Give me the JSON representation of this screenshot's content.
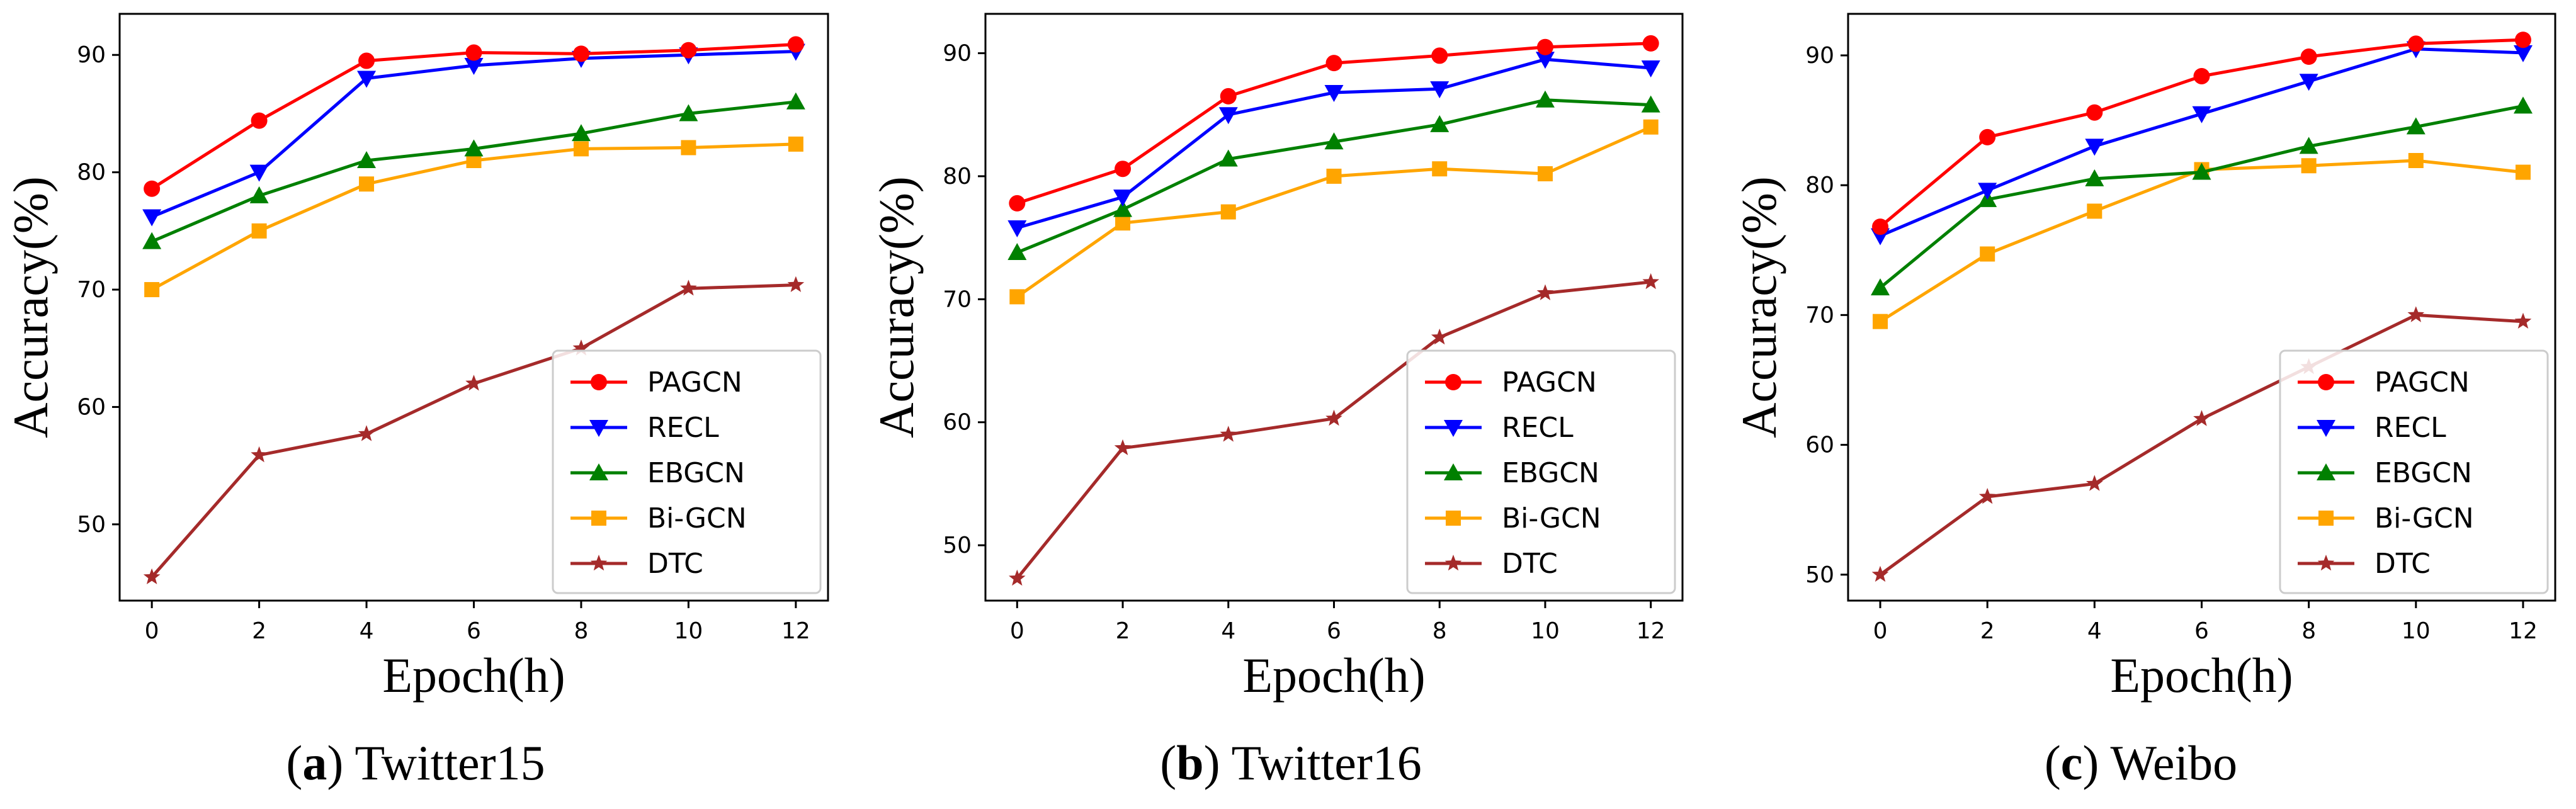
{
  "legend_series": [
    "PAGCN",
    "RECL",
    "EBGCN",
    "Bi-GCN",
    "DTC"
  ],
  "series_style": {
    "PAGCN": {
      "color": "#ff0000",
      "marker": "circle"
    },
    "RECL": {
      "color": "#0000ff",
      "marker": "triangle-down"
    },
    "EBGCN": {
      "color": "#008000",
      "marker": "triangle-up"
    },
    "Bi-GCN": {
      "color": "#ffa500",
      "marker": "square"
    },
    "DTC": {
      "color": "#a52a2a",
      "marker": "star"
    }
  },
  "chart_data": [
    {
      "type": "line",
      "caption_letter": "a",
      "caption_text": " Twitter15",
      "xlabel": "Epoch(h)",
      "ylabel": "Accuracy(%)",
      "x": [
        0,
        2,
        4,
        6,
        8,
        10,
        12
      ],
      "xticks": [
        "0",
        "2",
        "4",
        "6",
        "8",
        "10",
        "12"
      ],
      "yticks": [
        50,
        60,
        70,
        80,
        90
      ],
      "xlim": [
        -0.6,
        12.6
      ],
      "ylim": [
        43.5,
        93.5
      ],
      "legend_position": "lower-right",
      "series": [
        {
          "name": "PAGCN",
          "values": [
            78.6,
            84.4,
            89.5,
            90.2,
            90.1,
            90.4,
            90.9
          ]
        },
        {
          "name": "RECL",
          "values": [
            76.2,
            80.0,
            88.0,
            89.1,
            89.7,
            90.0,
            90.3
          ]
        },
        {
          "name": "EBGCN",
          "values": [
            74.1,
            78.0,
            81.0,
            82.0,
            83.3,
            85.0,
            86.0
          ]
        },
        {
          "name": "Bi-GCN",
          "values": [
            70.0,
            75.0,
            79.0,
            81.0,
            82.0,
            82.1,
            82.4
          ]
        },
        {
          "name": "DTC",
          "values": [
            45.5,
            55.9,
            57.7,
            62.0,
            65.0,
            70.1,
            70.4
          ]
        }
      ]
    },
    {
      "type": "line",
      "caption_letter": "b",
      "caption_text": " Twitter16",
      "xlabel": "Epoch(h)",
      "ylabel": "Accuracy(%)",
      "x": [
        0,
        2,
        4,
        6,
        8,
        10,
        12
      ],
      "xticks": [
        "0",
        "2",
        "4",
        "6",
        "8",
        "10",
        "12"
      ],
      "yticks": [
        50,
        60,
        70,
        80,
        90
      ],
      "xlim": [
        -0.6,
        12.6
      ],
      "ylim": [
        45.5,
        93.2
      ],
      "legend_position": "lower-right",
      "series": [
        {
          "name": "PAGCN",
          "values": [
            77.8,
            80.6,
            86.5,
            89.2,
            89.8,
            90.5,
            90.8
          ]
        },
        {
          "name": "RECL",
          "values": [
            75.8,
            78.3,
            85.0,
            86.8,
            87.1,
            89.5,
            88.8
          ]
        },
        {
          "name": "EBGCN",
          "values": [
            73.8,
            77.3,
            81.4,
            82.8,
            84.2,
            86.2,
            85.8
          ]
        },
        {
          "name": "Bi-GCN",
          "values": [
            70.2,
            76.2,
            77.1,
            80.0,
            80.6,
            80.2,
            84.0
          ]
        },
        {
          "name": "DTC",
          "values": [
            47.3,
            57.9,
            59.0,
            60.3,
            66.9,
            70.5,
            71.4
          ]
        }
      ]
    },
    {
      "type": "line",
      "caption_letter": "c",
      "caption_text": " Weibo",
      "xlabel": "Epoch(h)",
      "ylabel": "Accuracy(%)",
      "x": [
        0,
        2,
        4,
        6,
        8,
        10,
        12
      ],
      "xticks": [
        "0",
        "2",
        "4",
        "6",
        "8",
        "10",
        "12"
      ],
      "yticks": [
        50,
        60,
        70,
        80,
        90
      ],
      "xlim": [
        -0.6,
        12.6
      ],
      "ylim": [
        48.0,
        93.2
      ],
      "legend_position": "lower-right",
      "series": [
        {
          "name": "PAGCN",
          "values": [
            76.8,
            83.7,
            85.6,
            88.4,
            89.9,
            90.9,
            91.2
          ]
        },
        {
          "name": "RECL",
          "values": [
            76.1,
            79.6,
            83.0,
            85.5,
            88.0,
            90.5,
            90.2
          ]
        },
        {
          "name": "EBGCN",
          "values": [
            72.1,
            78.9,
            80.5,
            81.0,
            83.0,
            84.5,
            86.1
          ]
        },
        {
          "name": "Bi-GCN",
          "values": [
            69.5,
            74.7,
            78.0,
            81.2,
            81.5,
            81.9,
            81.0
          ]
        },
        {
          "name": "DTC",
          "values": [
            50.0,
            56.0,
            57.0,
            62.0,
            66.0,
            70.0,
            69.5
          ]
        }
      ]
    }
  ]
}
